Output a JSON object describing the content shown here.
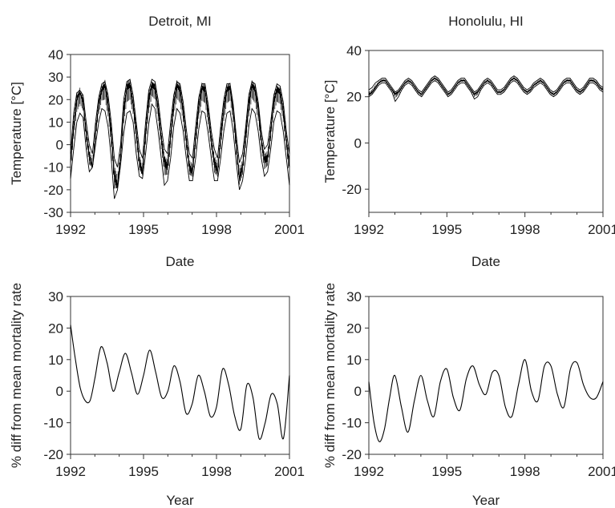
{
  "chart_data": [
    {
      "type": "line",
      "title": "Detroit, MI",
      "xlabel": "Date",
      "ylabel": "Temperature [°C]",
      "xlim": [
        1992,
        2001
      ],
      "ylim": [
        -30,
        40
      ],
      "xticks": [
        "1992",
        "1995",
        "1998",
        "2001"
      ],
      "yticks": [
        "-30",
        "-20",
        "-10",
        "0",
        "10",
        "20",
        "30",
        "40"
      ],
      "series": [
        {
          "values": [
            -8,
            8,
            20,
            23,
            19,
            5,
            -5,
            -10,
            5,
            18,
            24,
            26,
            18,
            5,
            -14,
            -18,
            -5,
            15,
            25,
            26,
            18,
            6,
            -8,
            -12,
            5,
            20,
            26,
            25,
            16,
            3,
            -8,
            -10,
            4,
            18,
            26,
            24,
            15,
            2,
            -10,
            -12,
            3,
            17,
            25,
            24,
            14,
            2,
            -8,
            -12,
            3,
            16,
            24,
            25,
            15,
            0,
            -15,
            -10,
            4,
            18,
            26,
            24,
            16,
            2,
            -7,
            -6,
            6,
            19,
            24,
            23,
            15,
            2,
            -10
          ]
        },
        {
          "values": [
            -15,
            -2,
            10,
            14,
            12,
            -2,
            -12,
            -10,
            0,
            10,
            16,
            15,
            8,
            -6,
            -24,
            -20,
            -9,
            5,
            14,
            15,
            10,
            -4,
            -14,
            -15,
            -4,
            9,
            18,
            16,
            6,
            -6,
            -18,
            -16,
            -6,
            8,
            16,
            14,
            6,
            -6,
            -16,
            -16,
            -6,
            7,
            15,
            14,
            5,
            -6,
            -16,
            -16,
            -6,
            6,
            14,
            15,
            6,
            -8,
            -20,
            -16,
            -6,
            8,
            16,
            14,
            6,
            -6,
            -14,
            -12,
            -2,
            10,
            15,
            14,
            6,
            -6,
            -18
          ]
        },
        {
          "values": [
            -4,
            14,
            23,
            24,
            22,
            10,
            0,
            -4,
            10,
            21,
            27,
            28,
            22,
            10,
            -6,
            -10,
            0,
            20,
            28,
            29,
            22,
            10,
            -2,
            -6,
            10,
            24,
            29,
            28,
            20,
            8,
            -2,
            -4,
            10,
            22,
            28,
            27,
            19,
            7,
            -4,
            -6,
            8,
            21,
            27,
            27,
            18,
            6,
            -2,
            -6,
            8,
            20,
            27,
            27,
            18,
            4,
            -8,
            -4,
            8,
            22,
            28,
            27,
            19,
            6,
            -2,
            0,
            10,
            22,
            27,
            26,
            19,
            6,
            -4
          ]
        }
      ]
    },
    {
      "type": "line",
      "title": "Honolulu, HI",
      "xlabel": "Date",
      "ylabel": "Temperature [°C]",
      "xlim": [
        1992,
        2001
      ],
      "ylim": [
        -30,
        40
      ],
      "xticks": [
        "1992",
        "1995",
        "1998",
        "2001"
      ],
      "yticks": [
        "-20",
        "0",
        "20",
        "40"
      ],
      "series": [
        {
          "values": [
            21,
            22,
            24,
            26,
            27,
            27,
            25,
            23,
            21,
            22,
            24,
            26,
            27,
            26,
            24,
            22,
            21,
            23,
            25,
            27,
            28,
            27,
            25,
            23,
            21,
            22,
            24,
            26,
            27,
            27,
            25,
            23,
            21,
            22,
            24,
            26,
            27,
            26,
            24,
            22,
            22,
            23,
            25,
            27,
            28,
            27,
            25,
            23,
            22,
            23,
            25,
            26,
            27,
            26,
            24,
            22,
            21,
            22,
            24,
            26,
            27,
            27,
            25,
            23,
            22,
            23,
            25,
            27,
            27,
            26,
            24,
            23
          ]
        },
        {
          "values": [
            20,
            21,
            23,
            25,
            26,
            26,
            24,
            22,
            18,
            20,
            23,
            25,
            26,
            25,
            23,
            21,
            20,
            22,
            24,
            26,
            27,
            26,
            24,
            22,
            20,
            21,
            23,
            25,
            26,
            26,
            24,
            22,
            19,
            20,
            23,
            25,
            26,
            25,
            23,
            21,
            21,
            22,
            24,
            26,
            27,
            26,
            24,
            22,
            21,
            22,
            24,
            25,
            26,
            25,
            23,
            21,
            20,
            21,
            23,
            25,
            26,
            26,
            24,
            22,
            21,
            22,
            24,
            26,
            26,
            25,
            23,
            22
          ]
        },
        {
          "values": [
            23,
            24,
            26,
            27,
            28,
            28,
            26,
            24,
            22,
            23,
            25,
            27,
            28,
            27,
            25,
            23,
            22,
            24,
            26,
            28,
            29,
            28,
            26,
            24,
            22,
            23,
            25,
            27,
            28,
            28,
            26,
            24,
            22,
            23,
            25,
            27,
            28,
            27,
            25,
            23,
            23,
            24,
            26,
            28,
            29,
            28,
            26,
            24,
            23,
            24,
            26,
            27,
            28,
            27,
            25,
            23,
            22,
            23,
            25,
            27,
            28,
            28,
            26,
            24,
            23,
            24,
            26,
            28,
            28,
            27,
            25,
            24
          ]
        }
      ]
    },
    {
      "type": "line",
      "xlabel": "Year",
      "ylabel": "% diff from mean mortality rate",
      "xlim": [
        1992,
        2001
      ],
      "ylim": [
        -20,
        30
      ],
      "xticks": [
        "1992",
        "1995",
        "1998",
        "2001"
      ],
      "yticks": [
        "-20",
        "-10",
        "0",
        "10",
        "20",
        "30"
      ],
      "series": [
        {
          "x": [
            1992.0,
            1992.2,
            1992.4,
            1992.6,
            1992.8,
            1993.0,
            1993.25,
            1993.5,
            1993.75,
            1994.0,
            1994.25,
            1994.5,
            1994.75,
            1995.0,
            1995.25,
            1995.5,
            1995.75,
            1996.0,
            1996.25,
            1996.5,
            1996.75,
            1997.0,
            1997.25,
            1997.5,
            1997.75,
            1998.0,
            1998.25,
            1998.5,
            1998.75,
            1999.0,
            1999.25,
            1999.5,
            1999.75,
            2000.0,
            2000.25,
            2000.5,
            2000.75,
            2001.0
          ],
          "y": [
            21,
            10,
            1,
            -3,
            -3,
            4,
            14,
            9,
            0,
            6,
            12,
            6,
            -1,
            5,
            13,
            6,
            -2,
            0,
            8,
            3,
            -7,
            -4,
            5,
            0,
            -8,
            -5,
            7,
            2,
            -8,
            -12,
            2,
            -2,
            -15,
            -10,
            -1,
            -4,
            -15,
            5
          ]
        }
      ]
    },
    {
      "type": "line",
      "xlabel": "Year",
      "ylabel": "% diff from mean mortality rate",
      "xlim": [
        1992,
        2001
      ],
      "ylim": [
        -20,
        30
      ],
      "xticks": [
        "1992",
        "1995",
        "1998",
        "2001"
      ],
      "yticks": [
        "-20",
        "-10",
        "0",
        "10",
        "20",
        "30"
      ],
      "series": [
        {
          "x": [
            1992.0,
            1992.2,
            1992.4,
            1992.6,
            1992.8,
            1993.0,
            1993.25,
            1993.5,
            1993.75,
            1994.0,
            1994.25,
            1994.5,
            1994.75,
            1995.0,
            1995.25,
            1995.5,
            1995.75,
            1996.0,
            1996.25,
            1996.5,
            1996.75,
            1997.0,
            1997.25,
            1997.5,
            1997.75,
            1998.0,
            1998.25,
            1998.5,
            1998.75,
            1999.0,
            1999.25,
            1999.5,
            1999.75,
            2000.0,
            2000.25,
            2000.5,
            2000.75,
            2001.0
          ],
          "y": [
            3,
            -10,
            -16,
            -12,
            -2,
            5,
            -5,
            -13,
            -3,
            5,
            -3,
            -8,
            3,
            7,
            -2,
            -6,
            4,
            8,
            2,
            -1,
            6,
            5,
            -5,
            -8,
            2,
            10,
            0,
            -3,
            8,
            8,
            -1,
            -5,
            7,
            9,
            2,
            -2,
            -2,
            3
          ]
        }
      ]
    }
  ]
}
